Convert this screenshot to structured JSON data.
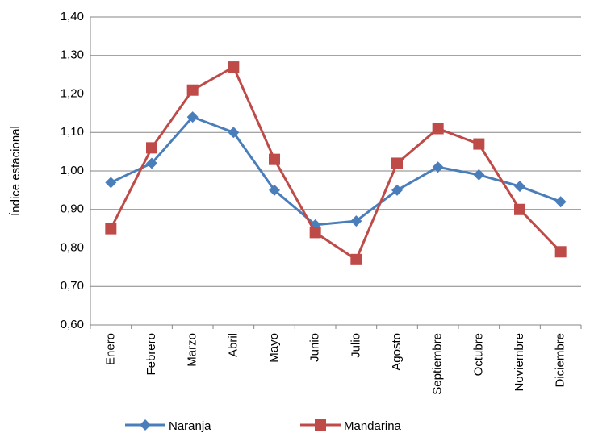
{
  "chart_data": {
    "type": "line",
    "y_label": "Índice estacional",
    "categories": [
      "Enero",
      "Febrero",
      "Marzo",
      "Abril",
      "Mayo",
      "Junio",
      "Julio",
      "Agosto",
      "Septiembre",
      "Octubre",
      "Noviembre",
      "Diciembre"
    ],
    "series": [
      {
        "name": "Naranja",
        "color": "#4a7ebb",
        "marker": "diamond",
        "values": [
          0.97,
          1.02,
          1.14,
          1.1,
          0.95,
          0.86,
          0.87,
          0.95,
          1.01,
          0.99,
          0.96,
          0.92
        ]
      },
      {
        "name": "Mandarina",
        "color": "#be4b48",
        "marker": "square",
        "values": [
          0.85,
          1.06,
          1.21,
          1.27,
          1.03,
          0.84,
          0.77,
          1.02,
          1.11,
          1.07,
          0.9,
          0.79
        ]
      }
    ],
    "ylim": [
      0.6,
      1.4
    ],
    "yticks": [
      {
        "value": 0.6,
        "label": "0,60"
      },
      {
        "value": 0.7,
        "label": "0,70"
      },
      {
        "value": 0.8,
        "label": "0,80"
      },
      {
        "value": 0.9,
        "label": "0,90"
      },
      {
        "value": 1.0,
        "label": "1,00"
      },
      {
        "value": 1.1,
        "label": "1,10"
      },
      {
        "value": 1.2,
        "label": "1,20"
      },
      {
        "value": 1.3,
        "label": "1,30"
      },
      {
        "value": 1.4,
        "label": "1,40"
      }
    ],
    "grid": true,
    "legend": "bottom"
  }
}
